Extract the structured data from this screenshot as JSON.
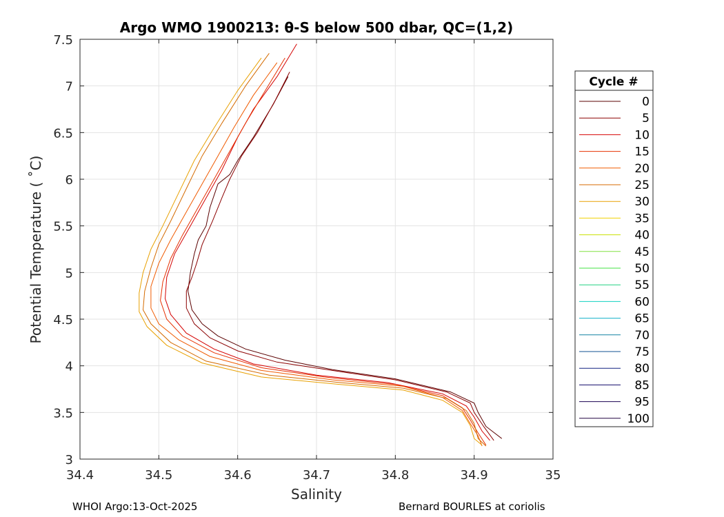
{
  "chart_data": {
    "type": "line",
    "title": "Argo WMO 1900213: θ-S below 500 dbar,  QC=(1,2)",
    "xlabel": "Salinity",
    "ylabel": "Potential Temperature ( ˚C)",
    "xlim": [
      34.4,
      35
    ],
    "ylim": [
      3,
      7.5
    ],
    "xticks": [
      34.4,
      34.5,
      34.6,
      34.7,
      34.8,
      34.9,
      35
    ],
    "yticks": [
      3,
      3.5,
      4,
      4.5,
      5,
      5.5,
      6,
      6.5,
      7,
      7.5
    ],
    "xtick_labels": [
      "34.4",
      "34.5",
      "34.6",
      "34.7",
      "34.8",
      "34.9",
      "35"
    ],
    "ytick_labels": [
      "3",
      "3.5",
      "4",
      "4.5",
      "5",
      "5.5",
      "6",
      "6.5",
      "7",
      "7.5"
    ],
    "grid": true,
    "legend": {
      "title": "Cycle #",
      "position": "right-outside",
      "entries": [
        "0",
        "5",
        "10",
        "15",
        "20",
        "25",
        "30",
        "35",
        "40",
        "45",
        "50",
        "55",
        "60",
        "65",
        "70",
        "75",
        "80",
        "85",
        "95",
        "100"
      ],
      "colors": [
        "#5a0000",
        "#8b0000",
        "#d40000",
        "#e63000",
        "#f05a00",
        "#d46a00",
        "#e8a000",
        "#f0d000",
        "#c8e000",
        "#80e040",
        "#40e040",
        "#20d080",
        "#10d0c0",
        "#10b0c8",
        "#1080a0",
        "#105090",
        "#102080",
        "#100868",
        "#180050",
        "#200040"
      ]
    },
    "series": [
      {
        "name": "0",
        "color": "#5a0000",
        "points": [
          [
            34.664,
            7.1
          ],
          [
            34.645,
            6.8
          ],
          [
            34.62,
            6.45
          ],
          [
            34.6,
            6.2
          ],
          [
            34.59,
            6.05
          ],
          [
            34.575,
            5.95
          ],
          [
            34.565,
            5.7
          ],
          [
            34.56,
            5.5
          ],
          [
            34.55,
            5.35
          ],
          [
            34.545,
            5.2
          ],
          [
            34.54,
            5.0
          ],
          [
            34.537,
            4.8
          ],
          [
            34.542,
            4.6
          ],
          [
            34.555,
            4.45
          ],
          [
            34.575,
            4.32
          ],
          [
            34.61,
            4.18
          ],
          [
            34.66,
            4.06
          ],
          [
            34.72,
            3.96
          ],
          [
            34.8,
            3.86
          ],
          [
            34.87,
            3.72
          ],
          [
            34.9,
            3.6
          ],
          [
            34.905,
            3.5
          ],
          [
            34.915,
            3.35
          ],
          [
            34.935,
            3.22
          ]
        ]
      },
      {
        "name": "5",
        "color": "#8b0000",
        "points": [
          [
            34.666,
            7.15
          ],
          [
            34.648,
            6.85
          ],
          [
            34.625,
            6.5
          ],
          [
            34.605,
            6.25
          ],
          [
            34.59,
            6.0
          ],
          [
            34.58,
            5.8
          ],
          [
            34.568,
            5.55
          ],
          [
            34.555,
            5.3
          ],
          [
            34.548,
            5.1
          ],
          [
            34.542,
            4.95
          ],
          [
            34.535,
            4.8
          ],
          [
            34.535,
            4.62
          ],
          [
            34.545,
            4.45
          ],
          [
            34.565,
            4.3
          ],
          [
            34.6,
            4.16
          ],
          [
            34.65,
            4.04
          ],
          [
            34.72,
            3.95
          ],
          [
            34.8,
            3.85
          ],
          [
            34.865,
            3.72
          ],
          [
            34.895,
            3.6
          ],
          [
            34.9,
            3.5
          ],
          [
            34.912,
            3.35
          ],
          [
            34.925,
            3.2
          ]
        ]
      },
      {
        "name": "10",
        "color": "#d40000",
        "points": [
          [
            34.675,
            7.45
          ],
          [
            34.65,
            7.1
          ],
          [
            34.62,
            6.75
          ],
          [
            34.6,
            6.45
          ],
          [
            34.58,
            6.1
          ],
          [
            34.56,
            5.8
          ],
          [
            34.54,
            5.5
          ],
          [
            34.52,
            5.2
          ],
          [
            34.51,
            4.95
          ],
          [
            34.508,
            4.72
          ],
          [
            34.515,
            4.55
          ],
          [
            34.535,
            4.35
          ],
          [
            34.57,
            4.18
          ],
          [
            34.62,
            4.02
          ],
          [
            34.7,
            3.9
          ],
          [
            34.79,
            3.82
          ],
          [
            34.86,
            3.7
          ],
          [
            34.89,
            3.57
          ],
          [
            34.9,
            3.45
          ],
          [
            34.91,
            3.3
          ],
          [
            34.92,
            3.2
          ]
        ]
      },
      {
        "name": "15",
        "color": "#e63000",
        "points": [
          [
            34.66,
            7.3
          ],
          [
            34.635,
            6.95
          ],
          [
            34.61,
            6.6
          ],
          [
            34.59,
            6.3
          ],
          [
            34.57,
            6.0
          ],
          [
            34.55,
            5.7
          ],
          [
            34.53,
            5.4
          ],
          [
            34.515,
            5.15
          ],
          [
            34.505,
            4.9
          ],
          [
            34.502,
            4.7
          ],
          [
            34.51,
            4.5
          ],
          [
            34.53,
            4.32
          ],
          [
            34.57,
            4.14
          ],
          [
            34.63,
            3.98
          ],
          [
            34.71,
            3.88
          ],
          [
            34.8,
            3.8
          ],
          [
            34.86,
            3.68
          ],
          [
            34.885,
            3.55
          ],
          [
            34.895,
            3.42
          ],
          [
            34.905,
            3.28
          ],
          [
            34.915,
            3.15
          ]
        ]
      },
      {
        "name": "20",
        "color": "#f05a00",
        "points": [
          [
            34.65,
            7.25
          ],
          [
            34.62,
            6.9
          ],
          [
            34.595,
            6.55
          ],
          [
            34.575,
            6.25
          ],
          [
            34.555,
            5.95
          ],
          [
            34.535,
            5.65
          ],
          [
            34.515,
            5.35
          ],
          [
            34.5,
            5.1
          ],
          [
            34.49,
            4.85
          ],
          [
            34.49,
            4.62
          ],
          [
            34.5,
            4.45
          ],
          [
            34.525,
            4.28
          ],
          [
            34.565,
            4.1
          ],
          [
            34.63,
            3.95
          ],
          [
            34.72,
            3.85
          ],
          [
            34.81,
            3.78
          ],
          [
            34.86,
            3.66
          ],
          [
            34.885,
            3.52
          ],
          [
            34.895,
            3.38
          ],
          [
            34.905,
            3.25
          ],
          [
            34.91,
            3.14
          ]
        ]
      },
      {
        "name": "25",
        "color": "#d46a00",
        "points": [
          [
            34.64,
            7.35
          ],
          [
            34.61,
            7.0
          ],
          [
            34.58,
            6.6
          ],
          [
            34.555,
            6.25
          ],
          [
            34.535,
            5.9
          ],
          [
            34.515,
            5.55
          ],
          [
            34.5,
            5.3
          ],
          [
            34.49,
            5.05
          ],
          [
            34.482,
            4.8
          ],
          [
            34.48,
            4.6
          ],
          [
            34.49,
            4.45
          ],
          [
            34.515,
            4.25
          ],
          [
            34.56,
            4.05
          ],
          [
            34.64,
            3.9
          ],
          [
            34.73,
            3.82
          ],
          [
            34.81,
            3.76
          ],
          [
            34.865,
            3.65
          ],
          [
            34.89,
            3.52
          ],
          [
            34.9,
            3.38
          ],
          [
            34.905,
            3.22
          ],
          [
            34.915,
            3.14
          ]
        ]
      },
      {
        "name": "30",
        "color": "#e8a000",
        "points": [
          [
            34.63,
            7.3
          ],
          [
            34.6,
            6.95
          ],
          [
            34.57,
            6.55
          ],
          [
            34.545,
            6.2
          ],
          [
            34.525,
            5.85
          ],
          [
            34.505,
            5.5
          ],
          [
            34.49,
            5.25
          ],
          [
            34.48,
            5.0
          ],
          [
            34.475,
            4.78
          ],
          [
            34.475,
            4.58
          ],
          [
            34.485,
            4.42
          ],
          [
            34.51,
            4.22
          ],
          [
            34.555,
            4.03
          ],
          [
            34.63,
            3.88
          ],
          [
            34.73,
            3.8
          ],
          [
            34.81,
            3.74
          ],
          [
            34.86,
            3.63
          ],
          [
            34.885,
            3.5
          ],
          [
            34.895,
            3.36
          ],
          [
            34.9,
            3.22
          ],
          [
            34.91,
            3.15
          ]
        ]
      }
    ]
  },
  "footer": {
    "left": "WHOI Argo:13-Oct-2025",
    "right": "Bernard BOURLES at coriolis"
  }
}
